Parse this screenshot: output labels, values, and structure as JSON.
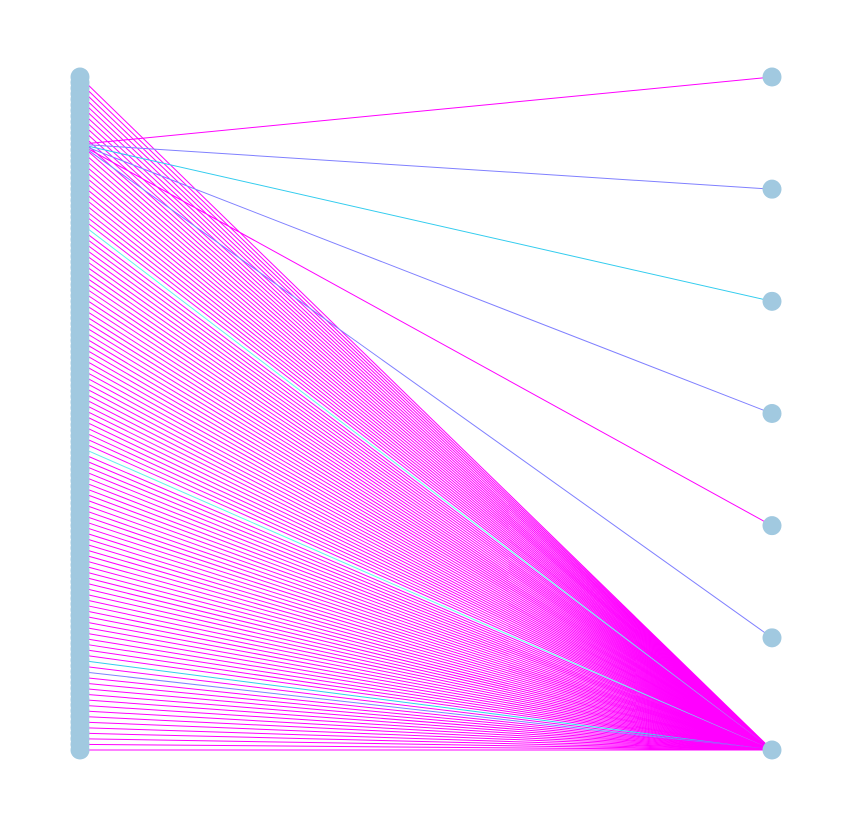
{
  "diagram": {
    "type": "bipartite-graph",
    "node_color": "#a1c9e0",
    "edge_colors": {
      "magenta": "#ff00ff",
      "cyan": "#33ccee",
      "slateblue": "#8080ff",
      "aqua": "#66eeee"
    },
    "left_partition": {
      "node_count": 121
    },
    "right_partition": {
      "node_count": 7
    },
    "edges": [
      {
        "from_left": 0,
        "to_right": 6,
        "color": "magenta"
      },
      {
        "from_left": 1,
        "to_right": 6,
        "color": "magenta"
      },
      {
        "from_left": 2,
        "to_right": 6,
        "color": "magenta"
      },
      {
        "from_left": 3,
        "to_right": 6,
        "color": "magenta"
      },
      {
        "from_left": 4,
        "to_right": 6,
        "color": "magenta"
      },
      {
        "from_left": 5,
        "to_right": 6,
        "color": "magenta"
      },
      {
        "from_left": 6,
        "to_right": 6,
        "color": "magenta"
      },
      {
        "from_left": 7,
        "to_right": 6,
        "color": "magenta"
      },
      {
        "from_left": 8,
        "to_right": 6,
        "color": "magenta"
      },
      {
        "from_left": 9,
        "to_right": 6,
        "color": "magenta"
      },
      {
        "from_left": 10,
        "to_right": 6,
        "color": "magenta"
      },
      {
        "from_left": 11,
        "to_right": 6,
        "color": "magenta"
      },
      {
        "from_left": 12,
        "to_right": 0,
        "color": "magenta"
      },
      {
        "from_left": 12,
        "to_right": 1,
        "color": "slateblue"
      },
      {
        "from_left": 12,
        "to_right": 2,
        "color": "cyan"
      },
      {
        "from_left": 12,
        "to_right": 3,
        "color": "slateblue"
      },
      {
        "from_left": 12,
        "to_right": 4,
        "color": "magenta"
      },
      {
        "from_left": 12,
        "to_right": 5,
        "color": "slateblue"
      },
      {
        "from_left": 12,
        "to_right": 6,
        "color": "magenta"
      },
      {
        "from_left": 13,
        "to_right": 6,
        "color": "magenta"
      },
      {
        "from_left": 14,
        "to_right": 6,
        "color": "magenta"
      },
      {
        "from_left": 15,
        "to_right": 6,
        "color": "magenta"
      },
      {
        "from_left": 16,
        "to_right": 6,
        "color": "magenta"
      },
      {
        "from_left": 17,
        "to_right": 6,
        "color": "magenta"
      },
      {
        "from_left": 18,
        "to_right": 6,
        "color": "magenta"
      },
      {
        "from_left": 19,
        "to_right": 6,
        "color": "magenta"
      },
      {
        "from_left": 20,
        "to_right": 6,
        "color": "magenta"
      },
      {
        "from_left": 21,
        "to_right": 6,
        "color": "magenta"
      },
      {
        "from_left": 22,
        "to_right": 6,
        "color": "magenta"
      },
      {
        "from_left": 23,
        "to_right": 6,
        "color": "magenta"
      },
      {
        "from_left": 24,
        "to_right": 6,
        "color": "magenta"
      },
      {
        "from_left": 25,
        "to_right": 6,
        "color": "magenta"
      },
      {
        "from_left": 26,
        "to_right": 6,
        "color": "aqua"
      },
      {
        "from_left": 27,
        "to_right": 6,
        "color": "magenta"
      },
      {
        "from_left": 28,
        "to_right": 6,
        "color": "magenta"
      },
      {
        "from_left": 29,
        "to_right": 6,
        "color": "magenta"
      },
      {
        "from_left": 30,
        "to_right": 6,
        "color": "magenta"
      },
      {
        "from_left": 31,
        "to_right": 6,
        "color": "magenta"
      },
      {
        "from_left": 32,
        "to_right": 6,
        "color": "magenta"
      },
      {
        "from_left": 33,
        "to_right": 6,
        "color": "magenta"
      },
      {
        "from_left": 34,
        "to_right": 6,
        "color": "magenta"
      },
      {
        "from_left": 35,
        "to_right": 6,
        "color": "magenta"
      },
      {
        "from_left": 36,
        "to_right": 6,
        "color": "magenta"
      },
      {
        "from_left": 37,
        "to_right": 6,
        "color": "magenta"
      },
      {
        "from_left": 38,
        "to_right": 6,
        "color": "magenta"
      },
      {
        "from_left": 39,
        "to_right": 6,
        "color": "magenta"
      },
      {
        "from_left": 40,
        "to_right": 6,
        "color": "magenta"
      },
      {
        "from_left": 41,
        "to_right": 6,
        "color": "magenta"
      },
      {
        "from_left": 42,
        "to_right": 6,
        "color": "magenta"
      },
      {
        "from_left": 43,
        "to_right": 6,
        "color": "magenta"
      },
      {
        "from_left": 44,
        "to_right": 6,
        "color": "magenta"
      },
      {
        "from_left": 45,
        "to_right": 6,
        "color": "magenta"
      },
      {
        "from_left": 46,
        "to_right": 6,
        "color": "magenta"
      },
      {
        "from_left": 47,
        "to_right": 6,
        "color": "magenta"
      },
      {
        "from_left": 48,
        "to_right": 6,
        "color": "magenta"
      },
      {
        "from_left": 49,
        "to_right": 6,
        "color": "magenta"
      },
      {
        "from_left": 50,
        "to_right": 6,
        "color": "magenta"
      },
      {
        "from_left": 51,
        "to_right": 6,
        "color": "magenta"
      },
      {
        "from_left": 52,
        "to_right": 6,
        "color": "magenta"
      },
      {
        "from_left": 53,
        "to_right": 6,
        "color": "magenta"
      },
      {
        "from_left": 54,
        "to_right": 6,
        "color": "magenta"
      },
      {
        "from_left": 55,
        "to_right": 6,
        "color": "magenta"
      },
      {
        "from_left": 56,
        "to_right": 6,
        "color": "magenta"
      },
      {
        "from_left": 57,
        "to_right": 6,
        "color": "magenta"
      },
      {
        "from_left": 58,
        "to_right": 6,
        "color": "magenta"
      },
      {
        "from_left": 59,
        "to_right": 6,
        "color": "magenta"
      },
      {
        "from_left": 60,
        "to_right": 6,
        "color": "magenta"
      },
      {
        "from_left": 61,
        "to_right": 6,
        "color": "magenta"
      },
      {
        "from_left": 62,
        "to_right": 6,
        "color": "magenta"
      },
      {
        "from_left": 63,
        "to_right": 6,
        "color": "magenta"
      },
      {
        "from_left": 64,
        "to_right": 6,
        "color": "magenta"
      },
      {
        "from_left": 65,
        "to_right": 6,
        "color": "magenta"
      },
      {
        "from_left": 66,
        "to_right": 6,
        "color": "aqua"
      },
      {
        "from_left": 67,
        "to_right": 6,
        "color": "magenta"
      },
      {
        "from_left": 68,
        "to_right": 6,
        "color": "magenta"
      },
      {
        "from_left": 69,
        "to_right": 6,
        "color": "magenta"
      },
      {
        "from_left": 70,
        "to_right": 6,
        "color": "magenta"
      },
      {
        "from_left": 71,
        "to_right": 6,
        "color": "magenta"
      },
      {
        "from_left": 72,
        "to_right": 6,
        "color": "magenta"
      },
      {
        "from_left": 73,
        "to_right": 6,
        "color": "magenta"
      },
      {
        "from_left": 74,
        "to_right": 6,
        "color": "magenta"
      },
      {
        "from_left": 75,
        "to_right": 6,
        "color": "magenta"
      },
      {
        "from_left": 76,
        "to_right": 6,
        "color": "magenta"
      },
      {
        "from_left": 77,
        "to_right": 6,
        "color": "magenta"
      },
      {
        "from_left": 78,
        "to_right": 6,
        "color": "magenta"
      },
      {
        "from_left": 79,
        "to_right": 6,
        "color": "magenta"
      },
      {
        "from_left": 80,
        "to_right": 6,
        "color": "magenta"
      },
      {
        "from_left": 81,
        "to_right": 6,
        "color": "magenta"
      },
      {
        "from_left": 82,
        "to_right": 6,
        "color": "magenta"
      },
      {
        "from_left": 83,
        "to_right": 6,
        "color": "magenta"
      },
      {
        "from_left": 84,
        "to_right": 6,
        "color": "magenta"
      },
      {
        "from_left": 85,
        "to_right": 6,
        "color": "magenta"
      },
      {
        "from_left": 86,
        "to_right": 6,
        "color": "magenta"
      },
      {
        "from_left": 87,
        "to_right": 6,
        "color": "magenta"
      },
      {
        "from_left": 88,
        "to_right": 6,
        "color": "magenta"
      },
      {
        "from_left": 89,
        "to_right": 6,
        "color": "magenta"
      },
      {
        "from_left": 90,
        "to_right": 6,
        "color": "magenta"
      },
      {
        "from_left": 91,
        "to_right": 6,
        "color": "magenta"
      },
      {
        "from_left": 92,
        "to_right": 6,
        "color": "magenta"
      },
      {
        "from_left": 93,
        "to_right": 6,
        "color": "magenta"
      },
      {
        "from_left": 94,
        "to_right": 6,
        "color": "magenta"
      },
      {
        "from_left": 95,
        "to_right": 6,
        "color": "magenta"
      },
      {
        "from_left": 96,
        "to_right": 6,
        "color": "magenta"
      },
      {
        "from_left": 97,
        "to_right": 6,
        "color": "magenta"
      },
      {
        "from_left": 98,
        "to_right": 6,
        "color": "magenta"
      },
      {
        "from_left": 99,
        "to_right": 6,
        "color": "magenta"
      },
      {
        "from_left": 100,
        "to_right": 6,
        "color": "magenta"
      },
      {
        "from_left": 101,
        "to_right": 6,
        "color": "magenta"
      },
      {
        "from_left": 102,
        "to_right": 6,
        "color": "magenta"
      },
      {
        "from_left": 103,
        "to_right": 6,
        "color": "magenta"
      },
      {
        "from_left": 104,
        "to_right": 6,
        "color": "cyan"
      },
      {
        "from_left": 105,
        "to_right": 6,
        "color": "magenta"
      },
      {
        "from_left": 106,
        "to_right": 6,
        "color": "slateblue"
      },
      {
        "from_left": 107,
        "to_right": 6,
        "color": "magenta"
      },
      {
        "from_left": 108,
        "to_right": 6,
        "color": "magenta"
      },
      {
        "from_left": 109,
        "to_right": 6,
        "color": "magenta"
      },
      {
        "from_left": 110,
        "to_right": 6,
        "color": "magenta"
      },
      {
        "from_left": 111,
        "to_right": 6,
        "color": "magenta"
      },
      {
        "from_left": 112,
        "to_right": 6,
        "color": "magenta"
      },
      {
        "from_left": 113,
        "to_right": 6,
        "color": "magenta"
      },
      {
        "from_left": 114,
        "to_right": 6,
        "color": "magenta"
      },
      {
        "from_left": 115,
        "to_right": 6,
        "color": "magenta"
      },
      {
        "from_left": 116,
        "to_right": 6,
        "color": "magenta"
      },
      {
        "from_left": 117,
        "to_right": 6,
        "color": "magenta"
      },
      {
        "from_left": 118,
        "to_right": 6,
        "color": "magenta"
      },
      {
        "from_left": 119,
        "to_right": 6,
        "color": "magenta"
      },
      {
        "from_left": 120,
        "to_right": 6,
        "color": "magenta"
      }
    ]
  }
}
